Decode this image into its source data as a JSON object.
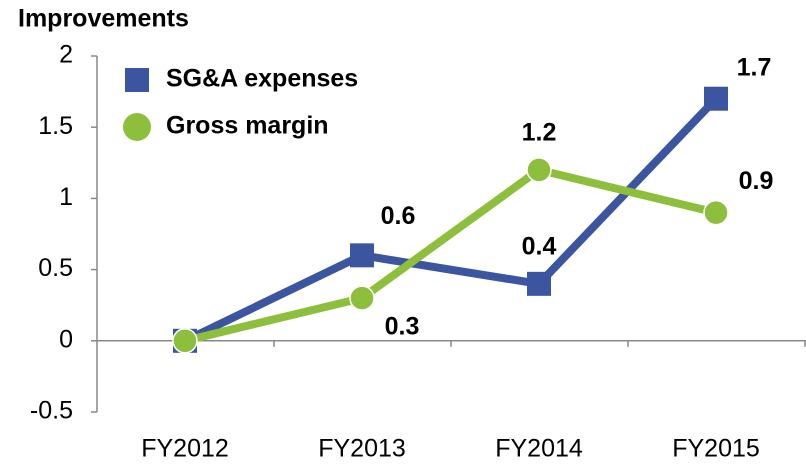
{
  "chart_data": {
    "type": "line",
    "y_label": "Improvements",
    "categories": [
      "FY2012",
      "FY2013",
      "FY2014",
      "FY2015"
    ],
    "series": [
      {
        "name": "SG&A expenses",
        "color": "#3b55a0",
        "marker": "square",
        "values": [
          0,
          0.6,
          0.4,
          1.7
        ],
        "value_labels": [
          null,
          "0.6",
          "0.4",
          "1.7"
        ]
      },
      {
        "name": "Gross margin",
        "color": "#8dbf3c",
        "marker": "circle",
        "values": [
          0,
          0.3,
          1.2,
          0.9
        ],
        "value_labels": [
          null,
          "0.3",
          "1.2",
          "0.9"
        ]
      }
    ],
    "ylim": [
      -0.5,
      2
    ],
    "yticks": [
      -0.5,
      0,
      0.5,
      1,
      1.5,
      2
    ],
    "grid": false,
    "legend": "upper left"
  }
}
